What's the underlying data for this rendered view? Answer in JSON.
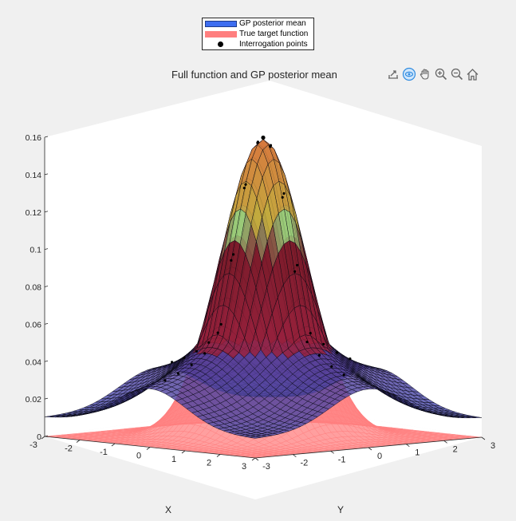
{
  "legend": {
    "items": [
      {
        "label": "GP posterior mean",
        "color": "#3d6df0"
      },
      {
        "label": "True target function",
        "color": "#ff7f7f"
      },
      {
        "label": "Interrogation points",
        "color": "#000000"
      }
    ]
  },
  "toolbar": {
    "icons": [
      "export-icon",
      "rotate-3d-icon",
      "pan-icon",
      "zoom-in-icon",
      "zoom-out-icon",
      "home-icon"
    ]
  },
  "chart_data": {
    "type": "surface",
    "title": "Full function and GP posterior mean",
    "xlabel": "X",
    "ylabel": "Y",
    "zlabel": "",
    "xlim": [
      -3,
      3
    ],
    "ylim": [
      -3,
      3
    ],
    "zlim": [
      0,
      0.16
    ],
    "x_ticks": [
      "-3",
      "-2",
      "-1",
      "0",
      "1",
      "2",
      "3"
    ],
    "y_ticks": [
      "-3",
      "-2",
      "-1",
      "0",
      "1",
      "2",
      "3"
    ],
    "z_ticks": [
      "0",
      "0.02",
      "0.04",
      "0.06",
      "0.08",
      "0.1",
      "0.12",
      "0.14",
      "0.16"
    ],
    "grid": false,
    "legend_position": "top-center",
    "view": "3d",
    "series": [
      {
        "name": "GP posterior mean",
        "kind": "surface",
        "peak": 0.159,
        "peak_at": [
          0,
          0
        ],
        "corner_value": 0.01,
        "color": "#3d6df0"
      },
      {
        "name": "True target function",
        "kind": "surface",
        "peak": 0.159,
        "peak_at": [
          0,
          0
        ],
        "corner_value": 0.0,
        "color": "#ff7f7f"
      },
      {
        "name": "Interrogation points",
        "kind": "points",
        "color": "#000000"
      }
    ]
  }
}
